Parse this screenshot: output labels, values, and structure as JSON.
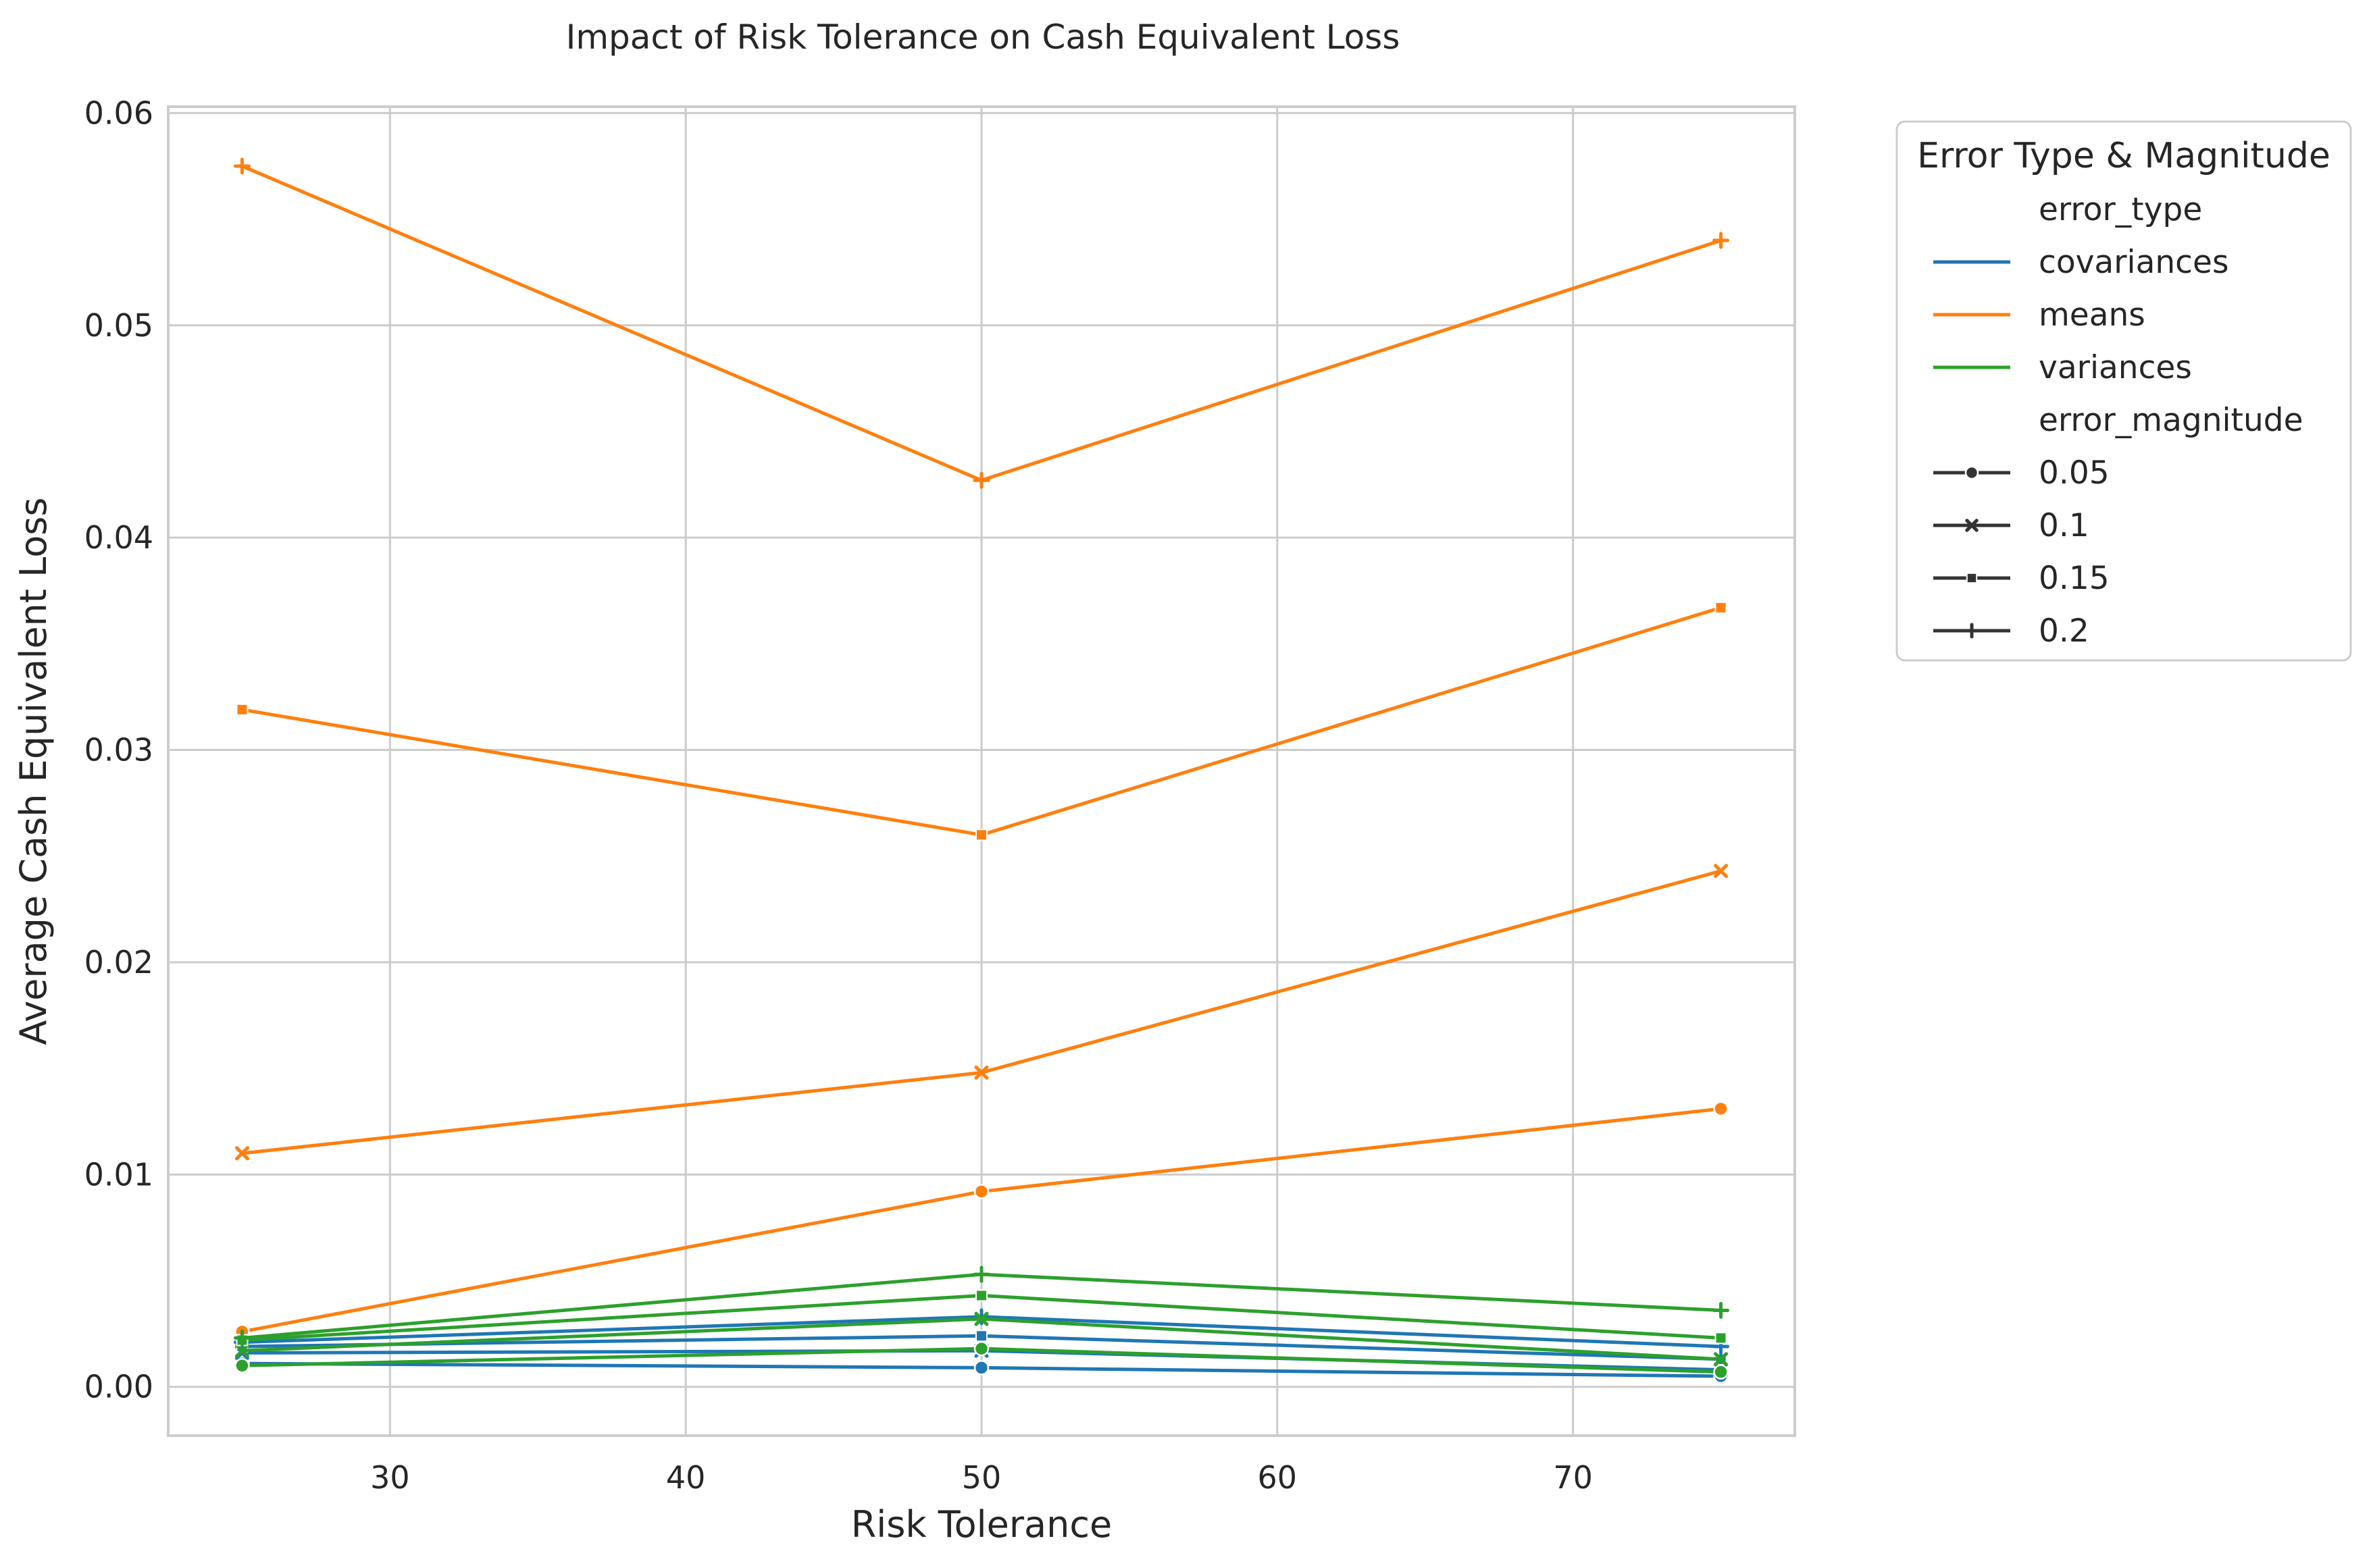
{
  "chart_data": {
    "type": "line",
    "title": "Impact of Risk Tolerance on Cash Equivalent Loss",
    "xlabel": "Risk Tolerance",
    "ylabel": "Average Cash Equivalent Loss",
    "xlim": [
      22.5,
      77.5
    ],
    "ylim": [
      -0.0023,
      0.0603
    ],
    "x_ticks": [
      30,
      40,
      50,
      60,
      70
    ],
    "x_tick_labels": [
      "30",
      "40",
      "50",
      "60",
      "70"
    ],
    "y_ticks": [
      0.0,
      0.01,
      0.02,
      0.03,
      0.04,
      0.05,
      0.06
    ],
    "y_tick_labels": [
      "0.00",
      "0.01",
      "0.02",
      "0.03",
      "0.04",
      "0.05",
      "0.06"
    ],
    "grid": true,
    "x": [
      25,
      50,
      75
    ],
    "colors": {
      "covariances": "#1f77b4",
      "means": "#ff7f0e",
      "variances": "#2ca02c"
    },
    "series": [
      {
        "error_type": "means",
        "error_magnitude": "0.05",
        "marker": "circle",
        "values": [
          0.0026,
          0.0092,
          0.0131
        ]
      },
      {
        "error_type": "means",
        "error_magnitude": "0.1",
        "marker": "x",
        "values": [
          0.011,
          0.0148,
          0.0243
        ]
      },
      {
        "error_type": "means",
        "error_magnitude": "0.15",
        "marker": "square",
        "values": [
          0.0319,
          0.026,
          0.0367
        ]
      },
      {
        "error_type": "means",
        "error_magnitude": "0.2",
        "marker": "plus",
        "values": [
          0.0575,
          0.0427,
          0.054
        ]
      },
      {
        "error_type": "covariances",
        "error_magnitude": "0.05",
        "marker": "circle",
        "values": [
          0.0011,
          0.0009,
          0.0005
        ]
      },
      {
        "error_type": "covariances",
        "error_magnitude": "0.1",
        "marker": "x",
        "values": [
          0.0016,
          0.0017,
          0.0008
        ]
      },
      {
        "error_type": "covariances",
        "error_magnitude": "0.15",
        "marker": "square",
        "values": [
          0.0019,
          0.0024,
          0.0013
        ]
      },
      {
        "error_type": "covariances",
        "error_magnitude": "0.2",
        "marker": "plus",
        "values": [
          0.0021,
          0.0033,
          0.0019
        ]
      },
      {
        "error_type": "variances",
        "error_magnitude": "0.05",
        "marker": "circle",
        "values": [
          0.001,
          0.0018,
          0.0007
        ]
      },
      {
        "error_type": "variances",
        "error_magnitude": "0.1",
        "marker": "x",
        "values": [
          0.0017,
          0.0032,
          0.0013
        ]
      },
      {
        "error_type": "variances",
        "error_magnitude": "0.15",
        "marker": "square",
        "values": [
          0.0022,
          0.0043,
          0.0023
        ]
      },
      {
        "error_type": "variances",
        "error_magnitude": "0.2",
        "marker": "plus",
        "values": [
          0.0023,
          0.0053,
          0.0036
        ]
      }
    ],
    "legend": {
      "title": "Error Type & Magnitude",
      "placement": "outside-top-right",
      "hue_title": "error_type",
      "hue_entries": [
        "covariances",
        "means",
        "variances"
      ],
      "style_title": "error_magnitude",
      "style_entries": [
        {
          "label": "0.05",
          "marker": "circle"
        },
        {
          "label": "0.1",
          "marker": "x"
        },
        {
          "label": "0.15",
          "marker": "square"
        },
        {
          "label": "0.2",
          "marker": "plus"
        }
      ]
    }
  }
}
